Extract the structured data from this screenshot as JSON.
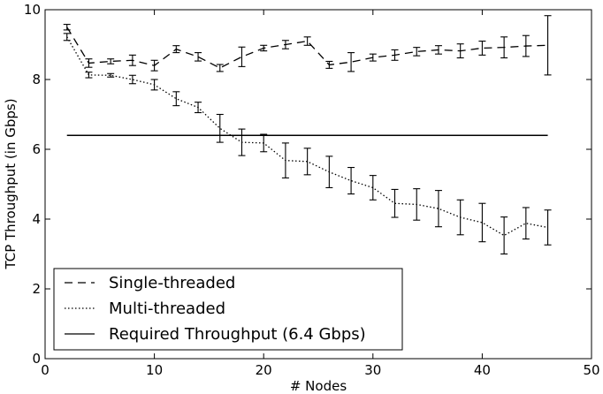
{
  "chart_data": {
    "type": "line",
    "title": "",
    "xlabel": "# Nodes",
    "ylabel": "TCP Throughput (in Gbps)",
    "xlim": [
      0,
      50
    ],
    "ylim": [
      0,
      10
    ],
    "xticks": [
      "0",
      "10",
      "20",
      "30",
      "40",
      "50"
    ],
    "yticks": [
      "0",
      "2",
      "4",
      "6",
      "8",
      "10"
    ],
    "grid": false,
    "legend_position": "bottom-left",
    "x": [
      2,
      4,
      6,
      8,
      10,
      12,
      14,
      16,
      18,
      20,
      22,
      24,
      26,
      28,
      30,
      32,
      34,
      36,
      38,
      40,
      42,
      44,
      46
    ],
    "series": [
      {
        "name": "Single-threaded",
        "style": "dashed",
        "values": [
          9.5,
          8.47,
          8.52,
          8.55,
          8.4,
          8.87,
          8.65,
          8.33,
          8.65,
          8.9,
          9.0,
          9.1,
          8.42,
          8.5,
          8.63,
          8.7,
          8.8,
          8.85,
          8.82,
          8.9,
          8.92,
          8.96,
          8.98
        ],
        "errors": [
          0.08,
          0.12,
          0.07,
          0.15,
          0.15,
          0.1,
          0.12,
          0.1,
          0.28,
          0.08,
          0.12,
          0.12,
          0.1,
          0.27,
          0.1,
          0.15,
          0.12,
          0.12,
          0.2,
          0.2,
          0.3,
          0.3,
          0.85
        ]
      },
      {
        "name": "Multi-threaded",
        "style": "dotted",
        "values": [
          9.22,
          8.13,
          8.12,
          8.0,
          7.85,
          7.45,
          7.2,
          6.6,
          6.2,
          6.18,
          5.68,
          5.65,
          5.35,
          5.1,
          4.9,
          4.45,
          4.42,
          4.3,
          4.05,
          3.9,
          3.53,
          3.88,
          3.76
        ],
        "errors": [
          0.1,
          0.08,
          0.05,
          0.12,
          0.15,
          0.2,
          0.15,
          0.4,
          0.38,
          0.25,
          0.5,
          0.38,
          0.45,
          0.38,
          0.35,
          0.4,
          0.45,
          0.52,
          0.5,
          0.55,
          0.53,
          0.45,
          0.5
        ]
      },
      {
        "name": "Required Throughput (6.4 Gbps)",
        "style": "solid",
        "x_range": [
          2,
          46
        ],
        "value": 6.4
      }
    ]
  }
}
